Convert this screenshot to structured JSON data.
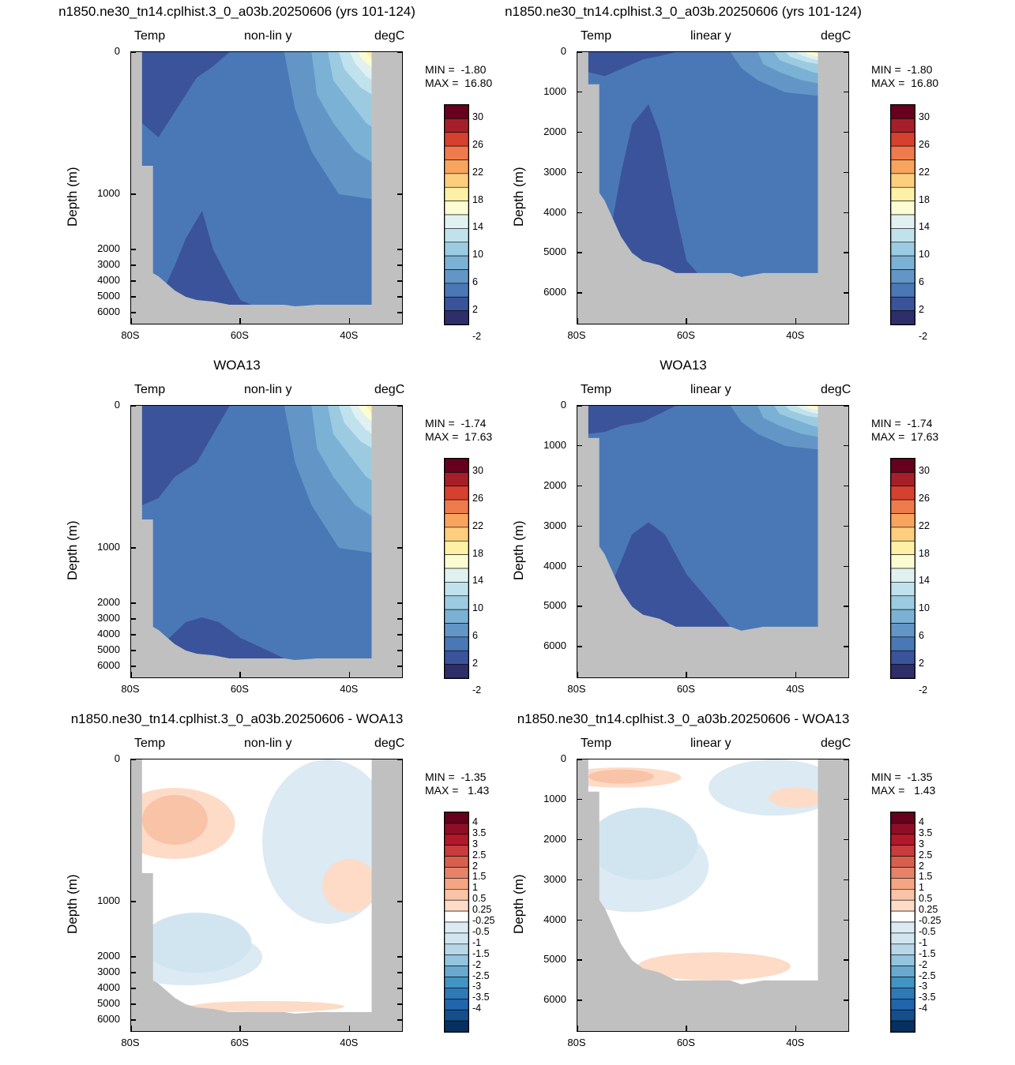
{
  "panels": [
    {
      "id": "p1",
      "title": "n1850.ne30_tn14.cplhist.3_0_a03b.20250606 (yrs 101-124)",
      "left_label": "Temp",
      "center_label": "non-lin y",
      "right_label": "degC",
      "ylabel": "Depth (m)",
      "yscale": "non-linear",
      "yticks": [
        "0",
        "1000",
        "2000",
        "3000",
        "4000",
        "5000",
        "6000"
      ],
      "xticks": [
        "80S",
        "60S",
        "40S"
      ],
      "min_label": "MIN =  -1.80",
      "max_label": "MAX =  16.80",
      "colorbar": "temp",
      "field": "model"
    },
    {
      "id": "p2",
      "title": "n1850.ne30_tn14.cplhist.3_0_a03b.20250606 (yrs 101-124)",
      "left_label": "Temp",
      "center_label": "linear y",
      "right_label": "degC",
      "ylabel": "Depth (m)",
      "yscale": "linear",
      "yticks": [
        "0",
        "1000",
        "2000",
        "3000",
        "4000",
        "5000",
        "6000"
      ],
      "xticks": [
        "80S",
        "60S",
        "40S"
      ],
      "min_label": "MIN =  -1.80",
      "max_label": "MAX =  16.80",
      "colorbar": "temp",
      "field": "model"
    },
    {
      "id": "p3",
      "title": "WOA13",
      "left_label": "Temp",
      "center_label": "non-lin y",
      "right_label": "degC",
      "ylabel": "Depth (m)",
      "yscale": "non-linear",
      "yticks": [
        "0",
        "1000",
        "2000",
        "3000",
        "4000",
        "5000",
        "6000"
      ],
      "xticks": [
        "80S",
        "60S",
        "40S"
      ],
      "min_label": "MIN =  -1.74",
      "max_label": "MAX =  17.63",
      "colorbar": "temp",
      "field": "obs"
    },
    {
      "id": "p4",
      "title": "WOA13",
      "left_label": "Temp",
      "center_label": "linear y",
      "right_label": "degC",
      "ylabel": "Depth (m)",
      "yscale": "linear",
      "yticks": [
        "0",
        "1000",
        "2000",
        "3000",
        "4000",
        "5000",
        "6000"
      ],
      "xticks": [
        "80S",
        "60S",
        "40S"
      ],
      "min_label": "MIN =  -1.74",
      "max_label": "MAX =  17.63",
      "colorbar": "temp",
      "field": "obs"
    },
    {
      "id": "p5",
      "title": "n1850.ne30_tn14.cplhist.3_0_a03b.20250606 - WOA13",
      "left_label": "Temp",
      "center_label": "non-lin y",
      "right_label": "degC",
      "ylabel": "Depth (m)",
      "yscale": "non-linear",
      "yticks": [
        "0",
        "1000",
        "2000",
        "3000",
        "4000",
        "5000",
        "6000"
      ],
      "xticks": [
        "80S",
        "60S",
        "40S"
      ],
      "min_label": "MIN =  -1.35",
      "max_label": "MAX =   1.43",
      "colorbar": "diff",
      "field": "diff"
    },
    {
      "id": "p6",
      "title": "n1850.ne30_tn14.cplhist.3_0_a03b.20250606 - WOA13",
      "left_label": "Temp",
      "center_label": "linear y",
      "right_label": "degC",
      "ylabel": "Depth (m)",
      "yscale": "linear",
      "yticks": [
        "0",
        "1000",
        "2000",
        "3000",
        "4000",
        "5000",
        "6000"
      ],
      "xticks": [
        "80S",
        "60S",
        "40S"
      ],
      "min_label": "MIN =  -1.35",
      "max_label": "MAX =   1.43",
      "colorbar": "diff",
      "field": "diff"
    }
  ],
  "colorbars": {
    "temp": {
      "labels": [
        "30",
        "26",
        "22",
        "18",
        "14",
        "10",
        "6",
        "2",
        "-2"
      ],
      "colors": [
        "#67001f",
        "#a51f2a",
        "#d6402e",
        "#ef7a4c",
        "#f8a45d",
        "#fcce7d",
        "#fef0a6",
        "#fbfcd2",
        "#e1f1f1",
        "#c0e2ec",
        "#9ccbe1",
        "#7bb1d4",
        "#6396c6",
        "#4a78b6",
        "#3b539a",
        "#2d2e6a"
      ]
    },
    "diff": {
      "labels": [
        "4",
        "3.5",
        "3",
        "2.5",
        "2",
        "1.5",
        "1",
        "0.5",
        "0.25",
        "-0.25",
        "-0.5",
        "-1",
        "-1.5",
        "-2",
        "-2.5",
        "-3",
        "-3.5",
        "-4"
      ],
      "colors": [
        "#67001f",
        "#8f0d25",
        "#b2182b",
        "#c83c3e",
        "#d6604d",
        "#e58368",
        "#f4a582",
        "#f8c3a7",
        "#fddbc7",
        "#ffffff",
        "#dbeaf3",
        "#d1e5f0",
        "#b7d6e8",
        "#92c5de",
        "#6aa9cf",
        "#4393c3",
        "#2f79b5",
        "#2166ac",
        "#134f8c",
        "#053061"
      ]
    }
  },
  "chart_data": [
    {
      "type": "heatmap",
      "title": "n1850.ne30_tn14.cplhist.3_0_a03b.20250606 (yrs 101-124)",
      "xlabel": "",
      "ylabel": "Depth (m)",
      "x_range": [
        "80S",
        "30S"
      ],
      "y_range": [
        0,
        6800
      ],
      "y_ticks": [
        0,
        1000,
        2000,
        3000,
        4000,
        5000,
        6000
      ],
      "x_ticks": [
        "80S",
        "60S",
        "40S"
      ],
      "min": -1.8,
      "max": 16.8,
      "levels": [
        -2,
        2,
        6,
        10,
        14,
        18,
        22,
        26,
        30
      ],
      "units": "degC"
    },
    {
      "type": "heatmap",
      "title": "n1850.ne30_tn14.cplhist.3_0_a03b.20250606 (yrs 101-124)",
      "xlabel": "",
      "ylabel": "Depth (m)",
      "x_range": [
        "80S",
        "30S"
      ],
      "y_range": [
        0,
        6800
      ],
      "y_ticks": [
        0,
        1000,
        2000,
        3000,
        4000,
        5000,
        6000
      ],
      "x_ticks": [
        "80S",
        "60S",
        "40S"
      ],
      "min": -1.8,
      "max": 16.8,
      "units": "degC"
    },
    {
      "type": "heatmap",
      "title": "WOA13",
      "xlabel": "",
      "ylabel": "Depth (m)",
      "x_range": [
        "80S",
        "30S"
      ],
      "y_range": [
        0,
        6800
      ],
      "y_ticks": [
        0,
        1000,
        2000,
        3000,
        4000,
        5000,
        6000
      ],
      "x_ticks": [
        "80S",
        "60S",
        "40S"
      ],
      "min": -1.74,
      "max": 17.63,
      "units": "degC"
    },
    {
      "type": "heatmap",
      "title": "WOA13",
      "xlabel": "",
      "ylabel": "Depth (m)",
      "x_range": [
        "80S",
        "30S"
      ],
      "y_range": [
        0,
        6800
      ],
      "y_ticks": [
        0,
        1000,
        2000,
        3000,
        4000,
        5000,
        6000
      ],
      "x_ticks": [
        "80S",
        "60S",
        "40S"
      ],
      "min": -1.74,
      "max": 17.63,
      "units": "degC"
    },
    {
      "type": "heatmap",
      "title": "n1850.ne30_tn14.cplhist.3_0_a03b.20250606 - WOA13",
      "xlabel": "",
      "ylabel": "Depth (m)",
      "x_range": [
        "80S",
        "30S"
      ],
      "y_range": [
        0,
        6800
      ],
      "y_ticks": [
        0,
        1000,
        2000,
        3000,
        4000,
        5000,
        6000
      ],
      "x_ticks": [
        "80S",
        "60S",
        "40S"
      ],
      "min": -1.35,
      "max": 1.43,
      "levels": [
        -4,
        -3.5,
        -3,
        -2.5,
        -2,
        -1.5,
        -1,
        -0.5,
        -0.25,
        0.25,
        0.5,
        1,
        1.5,
        2,
        2.5,
        3,
        3.5,
        4
      ],
      "units": "degC"
    },
    {
      "type": "heatmap",
      "title": "n1850.ne30_tn14.cplhist.3_0_a03b.20250606 - WOA13",
      "xlabel": "",
      "ylabel": "Depth (m)",
      "x_range": [
        "80S",
        "30S"
      ],
      "y_range": [
        0,
        6800
      ],
      "y_ticks": [
        0,
        1000,
        2000,
        3000,
        4000,
        5000,
        6000
      ],
      "x_ticks": [
        "80S",
        "60S",
        "40S"
      ],
      "min": -1.35,
      "max": 1.43,
      "units": "degC"
    }
  ]
}
